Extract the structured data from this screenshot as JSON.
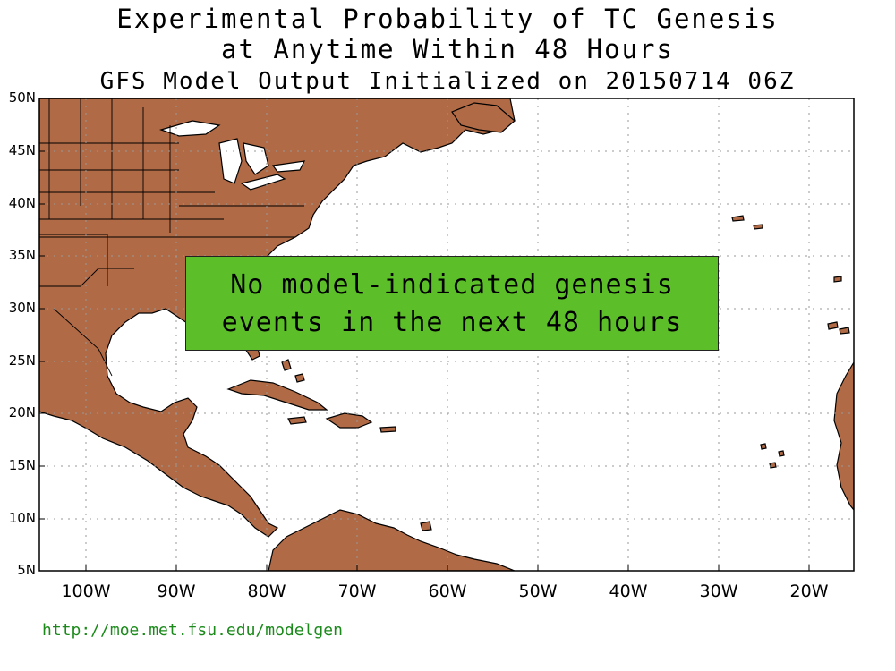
{
  "title": {
    "line1": "Experimental Probability of TC Genesis",
    "line2": "at Anytime Within 48 Hours",
    "line3": "GFS Model Output Initialized on 20150714 06Z"
  },
  "map": {
    "lat_labels": [
      "50N",
      "45N",
      "40N",
      "35N",
      "30N",
      "25N",
      "20N",
      "15N",
      "10N",
      "5N"
    ],
    "lon_labels": [
      "100W",
      "90W",
      "80W",
      "70W",
      "60W",
      "50W",
      "40W",
      "30W",
      "20W"
    ],
    "land_color": "#b06a45",
    "ocean_color": "#ffffff",
    "grid": "dotted"
  },
  "notice": {
    "line1": "No model-indicated genesis",
    "line2": "events in the next 48 hours",
    "color": "#5cbf2a"
  },
  "footer": {
    "url": "http://moe.met.fsu.edu/modelgen"
  }
}
